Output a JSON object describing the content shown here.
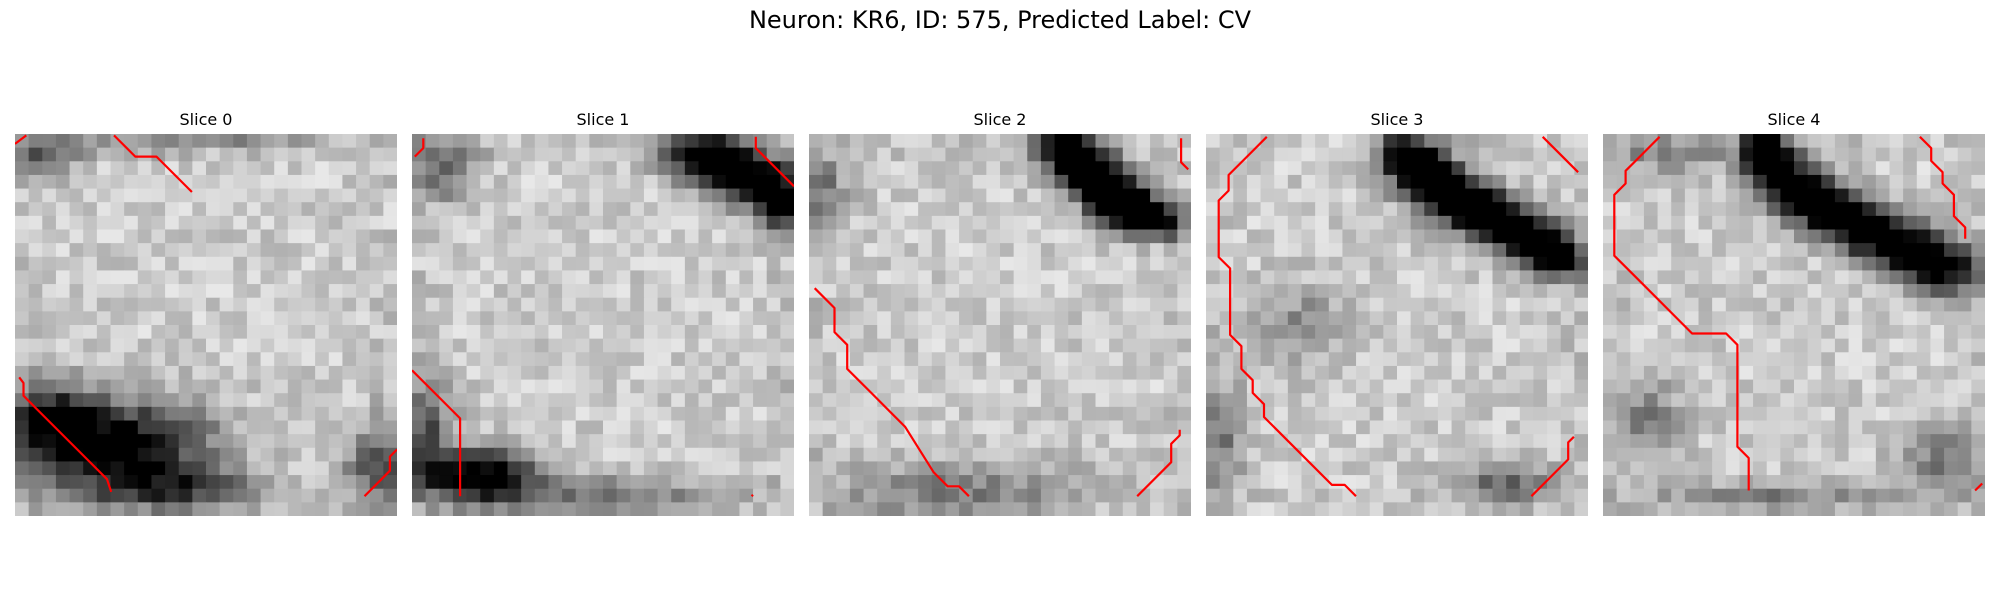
{
  "figure": {
    "title": "Neuron: KR6, ID: 575, Predicted Label: CV",
    "colors": {
      "contour": "#ff0000",
      "background": "#ffffff"
    },
    "grid_size": 28,
    "slices": [
      {
        "label": "Slice 0",
        "contours": [
          [
            [
              0,
              0.7
            ],
            [
              0.8,
              0.1
            ]
          ],
          [
            [
              7,
              0.1
            ],
            [
              8.5,
              1.6
            ],
            [
              10,
              1.6
            ],
            [
              12.5,
              4.1
            ]
          ],
          [
            [
              0.3,
              17.2
            ],
            [
              0.6,
              17.6
            ],
            [
              0.6,
              18.5
            ],
            [
              1.5,
              19.4
            ],
            [
              5.1,
              23.0
            ],
            [
              6.5,
              24.4
            ],
            [
              6.8,
              25.3
            ]
          ],
          [
            [
              24.7,
              25.6
            ],
            [
              26.5,
              23.8
            ],
            [
              26.5,
              22.8
            ],
            [
              27.0,
              22.3
            ]
          ]
        ],
        "dark": [
          {
            "x": 7,
            "y": 22.8,
            "rx": 7,
            "ry": 3.2,
            "a": 0.9
          },
          {
            "x": 2.5,
            "y": 20.5,
            "rx": 3,
            "ry": 2.5,
            "a": 0.5
          },
          {
            "x": 12,
            "y": 26,
            "rx": 6,
            "ry": 1.5,
            "a": 0.5
          },
          {
            "x": 26.5,
            "y": 24.5,
            "rx": 2.5,
            "ry": 3,
            "a": 0.45
          },
          {
            "x": 13,
            "y": 0,
            "rx": 8,
            "ry": 1.2,
            "a": 0.3
          },
          {
            "x": 2,
            "y": 1.5,
            "rx": 2.5,
            "ry": 2,
            "a": 0.4
          }
        ]
      },
      {
        "label": "Slice 1",
        "contours": [
          [
            [
              0.2,
              1.6
            ],
            [
              0.8,
              1.0
            ],
            [
              0.8,
              0.3
            ]
          ],
          [
            [
              24.3,
              0.2
            ],
            [
              24.3,
              1.0
            ],
            [
              27,
              3.7
            ]
          ],
          [
            [
              0,
              16.7
            ],
            [
              1.6,
              18.3
            ],
            [
              3.4,
              20.1
            ],
            [
              3.4,
              25.6
            ]
          ],
          [
            [
              24.0,
              25.6
            ],
            [
              24.1,
              25.5
            ]
          ]
        ],
        "dark": [
          {
            "x": 21.5,
            "y": 1.4,
            "rx": 3,
            "ry": 2,
            "a": 0.85
          },
          {
            "x": 24.8,
            "y": 3.2,
            "rx": 3,
            "ry": 1.8,
            "a": 0.85
          },
          {
            "x": 26.8,
            "y": 5.2,
            "rx": 1.8,
            "ry": 1.8,
            "a": 0.8
          },
          {
            "x": 5,
            "y": 25,
            "rx": 4,
            "ry": 1.8,
            "a": 0.9
          },
          {
            "x": 1,
            "y": 22,
            "rx": 2,
            "ry": 4,
            "a": 0.45
          },
          {
            "x": 2,
            "y": 2.5,
            "rx": 2.5,
            "ry": 2.5,
            "a": 0.4
          },
          {
            "x": 14,
            "y": 26.5,
            "rx": 9,
            "ry": 1.5,
            "a": 0.3
          }
        ]
      },
      {
        "label": "Slice 2",
        "contours": [
          [
            [
              26.3,
              0.3
            ],
            [
              26.3,
              2.0
            ],
            [
              26.8,
              2.5
            ]
          ],
          [
            [
              0.4,
              10.9
            ],
            [
              1.8,
              12.3
            ],
            [
              1.8,
              14.0
            ],
            [
              2.7,
              14.9
            ],
            [
              2.7,
              16.6
            ],
            [
              4.4,
              18.3
            ],
            [
              6.8,
              20.7
            ],
            [
              8.8,
              23.9
            ],
            [
              9.8,
              24.9
            ],
            [
              10.6,
              24.9
            ],
            [
              11.3,
              25.6
            ]
          ],
          [
            [
              23.2,
              25.6
            ],
            [
              25.1,
              23.7
            ],
            [
              25.6,
              23.2
            ],
            [
              25.6,
              21.9
            ],
            [
              26.2,
              21.3
            ],
            [
              26.2,
              20.9
            ]
          ]
        ],
        "dark": [
          {
            "x": 18.5,
            "y": 0.8,
            "rx": 2,
            "ry": 1.5,
            "a": 0.9
          },
          {
            "x": 20.2,
            "y": 2.4,
            "rx": 2.2,
            "ry": 1.6,
            "a": 0.9
          },
          {
            "x": 21.8,
            "y": 4.0,
            "rx": 2.2,
            "ry": 1.6,
            "a": 0.85
          },
          {
            "x": 23.5,
            "y": 5.5,
            "rx": 2.4,
            "ry": 1.6,
            "a": 0.85
          },
          {
            "x": 25.5,
            "y": 6.4,
            "rx": 2.2,
            "ry": 1.2,
            "a": 0.8
          },
          {
            "x": 11,
            "y": 26,
            "rx": 10,
            "ry": 2,
            "a": 0.3
          },
          {
            "x": 1,
            "y": 4,
            "rx": 2,
            "ry": 3,
            "a": 0.3
          }
        ]
      },
      {
        "label": "Slice 3",
        "contours": [
          [
            [
              4.3,
              0.2
            ],
            [
              3.2,
              1.3
            ],
            [
              1.6,
              2.9
            ],
            [
              1.6,
              4.0
            ],
            [
              0.9,
              4.7
            ],
            [
              0.9,
              8.7
            ],
            [
              1.7,
              9.5
            ],
            [
              1.7,
              14.2
            ],
            [
              2.5,
              15.0
            ],
            [
              2.5,
              16.6
            ],
            [
              3.3,
              17.4
            ],
            [
              3.3,
              18.3
            ],
            [
              4.1,
              19.1
            ],
            [
              4.1,
              20.0
            ],
            [
              5.0,
              20.9
            ],
            [
              8.9,
              24.8
            ],
            [
              9.8,
              24.8
            ],
            [
              10.6,
              25.6
            ]
          ],
          [
            [
              23.8,
              0.2
            ],
            [
              26.3,
              2.7
            ]
          ],
          [
            [
              23.0,
              25.6
            ],
            [
              25.6,
              23.0
            ],
            [
              25.6,
              21.8
            ],
            [
              26.0,
              21.4
            ]
          ]
        ],
        "dark": [
          {
            "x": 14.5,
            "y": 1.5,
            "rx": 2,
            "ry": 1.8,
            "a": 0.85
          },
          {
            "x": 16.3,
            "y": 3.3,
            "rx": 2.2,
            "ry": 1.8,
            "a": 0.9
          },
          {
            "x": 18.5,
            "y": 4.8,
            "rx": 2.4,
            "ry": 1.8,
            "a": 0.9
          },
          {
            "x": 21,
            "y": 6.2,
            "rx": 2.5,
            "ry": 1.8,
            "a": 0.85
          },
          {
            "x": 23.8,
            "y": 7.8,
            "rx": 2.5,
            "ry": 1.8,
            "a": 0.8
          },
          {
            "x": 26,
            "y": 9.2,
            "rx": 1.8,
            "ry": 1.5,
            "a": 0.75
          },
          {
            "x": 7,
            "y": 14,
            "rx": 3.5,
            "ry": 3,
            "a": 0.25
          },
          {
            "x": 22,
            "y": 25.5,
            "rx": 4,
            "ry": 1.5,
            "a": 0.4
          },
          {
            "x": 1,
            "y": 22,
            "rx": 2,
            "ry": 4,
            "a": 0.3
          }
        ]
      },
      {
        "label": "Slice 4",
        "contours": [
          [
            [
              4.0,
              0.2
            ],
            [
              2.4,
              1.8
            ],
            [
              1.6,
              2.6
            ],
            [
              1.6,
              3.5
            ],
            [
              0.8,
              4.3
            ],
            [
              0.8,
              8.6
            ],
            [
              2.4,
              10.2
            ],
            [
              6.3,
              14.1
            ],
            [
              8.7,
              14.1
            ],
            [
              9.5,
              14.9
            ],
            [
              9.5,
              22.1
            ],
            [
              10.3,
              22.9
            ],
            [
              10.3,
              25.2
            ]
          ],
          [
            [
              22.4,
              0.2
            ],
            [
              23.2,
              1.0
            ],
            [
              23.2,
              1.9
            ],
            [
              24.0,
              2.7
            ],
            [
              24.0,
              3.5
            ],
            [
              24.8,
              4.3
            ],
            [
              24.8,
              5.8
            ],
            [
              25.6,
              6.6
            ],
            [
              25.6,
              7.4
            ]
          ],
          [
            [
              26.3,
              25.2
            ],
            [
              26.8,
              24.7
            ]
          ]
        ],
        "dark": [
          {
            "x": 11.7,
            "y": 0.8,
            "rx": 1.3,
            "ry": 1.2,
            "a": 0.95
          },
          {
            "x": 12.5,
            "y": 2.5,
            "rx": 2.2,
            "ry": 1.8,
            "a": 0.85
          },
          {
            "x": 14.5,
            "y": 4.3,
            "rx": 2.5,
            "ry": 1.8,
            "a": 0.85
          },
          {
            "x": 17,
            "y": 5.8,
            "rx": 2.6,
            "ry": 1.8,
            "a": 0.85
          },
          {
            "x": 19.8,
            "y": 7.2,
            "rx": 2.6,
            "ry": 1.8,
            "a": 0.8
          },
          {
            "x": 22.5,
            "y": 8.6,
            "rx": 2.6,
            "ry": 1.8,
            "a": 0.8
          },
          {
            "x": 25.3,
            "y": 10.0,
            "rx": 2.5,
            "ry": 1.8,
            "a": 0.75
          },
          {
            "x": 5,
            "y": 1.5,
            "rx": 4,
            "ry": 1.5,
            "a": 0.3
          },
          {
            "x": 3,
            "y": 21,
            "rx": 3,
            "ry": 3,
            "a": 0.3
          },
          {
            "x": 25,
            "y": 24,
            "rx": 3,
            "ry": 2.5,
            "a": 0.35
          },
          {
            "x": 12,
            "y": 26.5,
            "rx": 10,
            "ry": 1.2,
            "a": 0.25
          }
        ]
      }
    ]
  }
}
